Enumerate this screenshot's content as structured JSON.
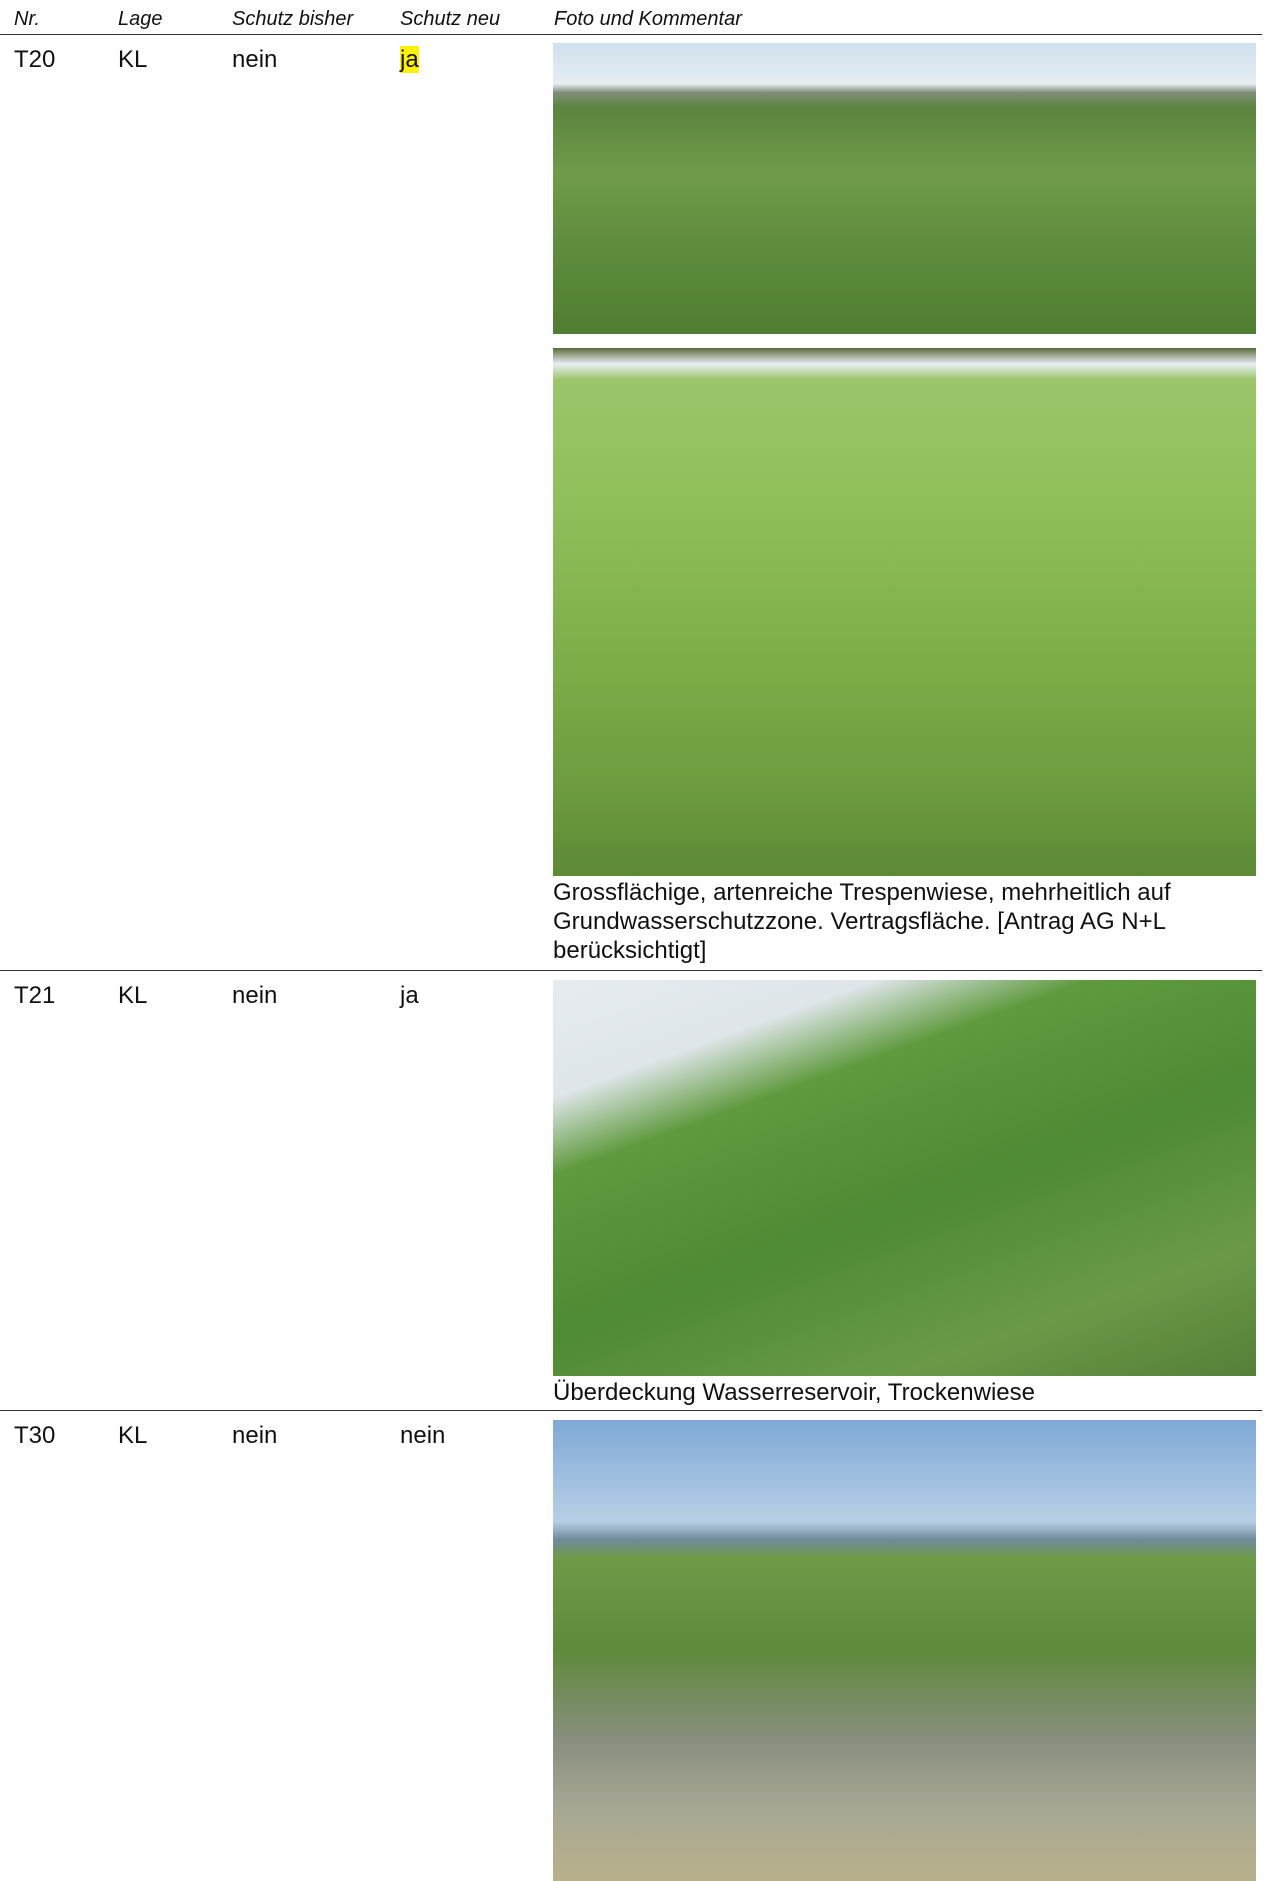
{
  "header": {
    "columns": [
      "Nr.",
      "Lage",
      "Schutz bisher",
      "Schutz neu",
      "Foto und Kommentar"
    ]
  },
  "table": {
    "rows": [
      {
        "nr": "T20",
        "lage": "KL",
        "schutz_bisher": "nein",
        "schutz_neu": "ja",
        "comment": "Grossflächige, artenreiche Trespenwiese, mehrheitlich auf Grundwasserschutzzone. Vertragsfläche. [Antrag AG N+L berücksichtigt]"
      },
      {
        "nr": "T21",
        "lage": "KL",
        "schutz_bisher": "nein",
        "schutz_neu": "ja",
        "comment": "Überdeckung Wasserreservoir, Trockenwiese"
      },
      {
        "nr": "T30",
        "lage": "KL",
        "schutz_bisher": "nein",
        "schutz_neu": "nein"
      }
    ]
  }
}
